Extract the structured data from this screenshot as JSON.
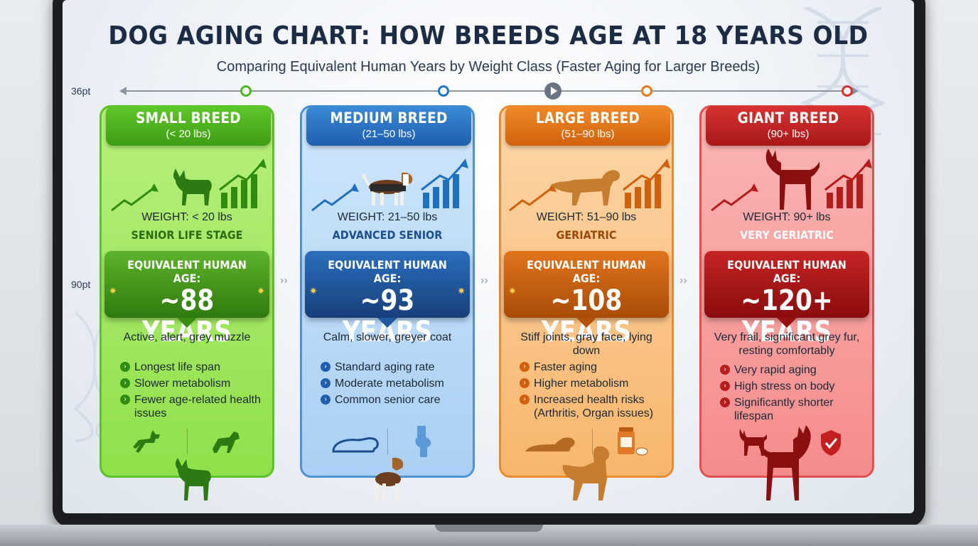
{
  "title": "DOG AGING CHART: HOW BREEDS AGE AT 18 YEARS OLD",
  "subtitle": "Comparing Equivalent Human Years by Weight Class (Faster Aging for Larger Breeds)",
  "side_labels": {
    "top": "36pt",
    "middle": "90pt"
  },
  "colors": {
    "small": "#4fb81e",
    "medium": "#2474c6",
    "large": "#e8791f",
    "giant": "#d42e2e"
  },
  "cards": [
    {
      "key": "small",
      "name": "SMALL BREED",
      "range": "(< 20 lbs)",
      "weight": "WEIGHT: < 20 lbs",
      "stage": "SENIOR LIFE STAGE",
      "age_label": "EQUIVALENT HUMAN AGE:",
      "age_value": "~88 YEARS",
      "description": "Active, alert, grey muzzle",
      "bullets": [
        "Longest life span",
        "Slower metabolism",
        "Fewer age-related health issues"
      ],
      "icons": [
        "chihuahua-icon",
        "trend-up-icon",
        "bar-growth-icon",
        "running-dog-icon",
        "playing-dog-icon"
      ]
    },
    {
      "key": "medium",
      "name": "MEDIUM BREED",
      "range": "(21–50 lbs)",
      "weight": "WEIGHT: 21–50 lbs",
      "stage": "ADVANCED SENIOR",
      "age_label": "EQUIVALENT HUMAN AGE:",
      "age_value": "~93 YEARS",
      "description": "Calm, slower, greyer coat",
      "bullets": [
        "Standard aging rate",
        "Moderate metabolism",
        "Common senior care"
      ],
      "icons": [
        "beagle-icon",
        "trend-up-icon",
        "bar-growth-icon",
        "sleeping-dog-icon",
        "joint-icon"
      ]
    },
    {
      "key": "large",
      "name": "LARGE BREED",
      "range": "(51–90 lbs)",
      "weight": "WEIGHT: 51–90 lbs",
      "stage": "GERIATRIC",
      "age_label": "EQUIVALENT HUMAN AGE:",
      "age_value": "~108 YEARS",
      "description": "Stiff joints, gray face, lying down",
      "bullets": [
        "Faster aging",
        "Higher metabolism",
        "Increased health risks (Arthritis, Organ issues)"
      ],
      "icons": [
        "retriever-icon",
        "trend-up-icon",
        "bar-growth-icon",
        "lying-dog-icon",
        "medicine-icon"
      ]
    },
    {
      "key": "giant",
      "name": "GIANT BREED",
      "range": "(90+ lbs)",
      "weight": "WEIGHT: 90+ lbs",
      "stage": "VERY GERIATRIC",
      "age_label": "EQUIVALENT HUMAN AGE:",
      "age_value": "~120+ YEARS",
      "description": "Very frail, significant grey fur, resting comfortably",
      "bullets": [
        "Very rapid aging",
        "High stress on body",
        "Significantly shorter lifespan"
      ],
      "icons": [
        "great-dane-icon",
        "trend-up-icon",
        "bar-growth-icon",
        "standing-dog-icon",
        "shield-check-icon"
      ]
    }
  ]
}
